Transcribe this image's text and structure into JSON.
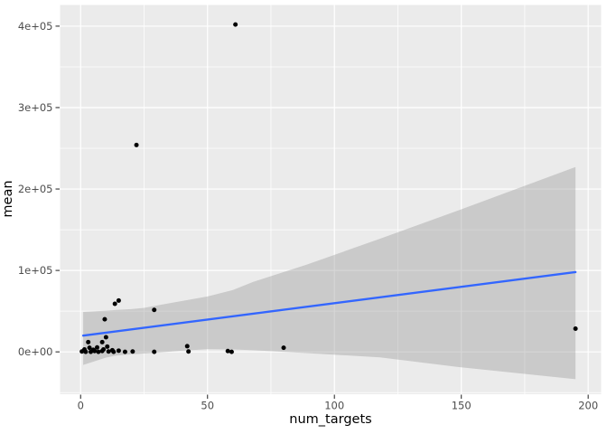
{
  "chart_data": {
    "type": "scatter",
    "title": "",
    "xlabel": "num_targets",
    "ylabel": "mean",
    "legend": "none",
    "grid": true,
    "xlim": [
      -8.1,
      205.1
    ],
    "ylim": [
      -52000,
      426000
    ],
    "x_ticks": {
      "values": [
        0,
        50,
        100,
        150,
        200
      ],
      "labels": [
        "0",
        "50",
        "100",
        "150",
        "200"
      ]
    },
    "y_ticks": {
      "values": [
        0,
        100000,
        200000,
        300000,
        400000
      ],
      "labels": [
        "0e+00",
        "1e+05",
        "2e+05",
        "3e+05",
        "4e+05"
      ]
    },
    "x_minor": [
      25,
      75,
      125,
      175
    ],
    "y_minor": [
      -50000,
      50000,
      150000,
      250000,
      350000
    ],
    "points": [
      [
        0.5,
        500
      ],
      [
        1.5,
        3000
      ],
      [
        2,
        0
      ],
      [
        3,
        12000
      ],
      [
        3.5,
        5000
      ],
      [
        4,
        0
      ],
      [
        5,
        2500
      ],
      [
        5.5,
        1000
      ],
      [
        6.5,
        5500
      ],
      [
        7,
        0
      ],
      [
        8.5,
        12000
      ],
      [
        8.5,
        1000
      ],
      [
        9,
        3000
      ],
      [
        9.5,
        40000
      ],
      [
        10,
        18000
      ],
      [
        10.5,
        6500
      ],
      [
        11,
        500
      ],
      [
        12.5,
        2000
      ],
      [
        13,
        0
      ],
      [
        13.5,
        59000
      ],
      [
        15,
        63000
      ],
      [
        15,
        1500
      ],
      [
        17.5,
        0
      ],
      [
        20.5,
        500
      ],
      [
        22,
        254000
      ],
      [
        29,
        51500
      ],
      [
        29,
        0
      ],
      [
        42,
        7000
      ],
      [
        42.5,
        500
      ],
      [
        58,
        1000
      ],
      [
        59.5,
        0
      ],
      [
        61,
        402000
      ],
      [
        80,
        5000
      ],
      [
        195,
        28500
      ]
    ],
    "smooth_line": {
      "x1": 1,
      "y1": 20000,
      "x2": 195,
      "y2": 98000
    },
    "confidence_band": {
      "x": [
        1,
        10,
        14,
        20,
        25,
        32,
        40,
        50,
        60,
        68,
        89,
        118,
        150,
        195
      ],
      "upper": [
        49000,
        50500,
        51500,
        52500,
        54000,
        58000,
        62500,
        68000,
        76000,
        86000,
        107000,
        139000,
        175000,
        227000
      ],
      "lower": [
        -16000,
        -7000,
        -4500,
        -3000,
        -2000,
        -500,
        1500,
        3200,
        3000,
        2000,
        -1500,
        -6700,
        -19000,
        -33500
      ]
    },
    "style": {
      "background": "#FFFFFF",
      "panel_bg": "#EBEBEB",
      "grid_color": "#FFFFFF",
      "band_fill": "#999999",
      "band_opacity": 0.4,
      "line_color": "#3366FF",
      "point_color": "#000000",
      "tick_label_color": "#4D4D4D",
      "tick_mark_color": "#333333",
      "axis_title_color": "#000000"
    }
  }
}
